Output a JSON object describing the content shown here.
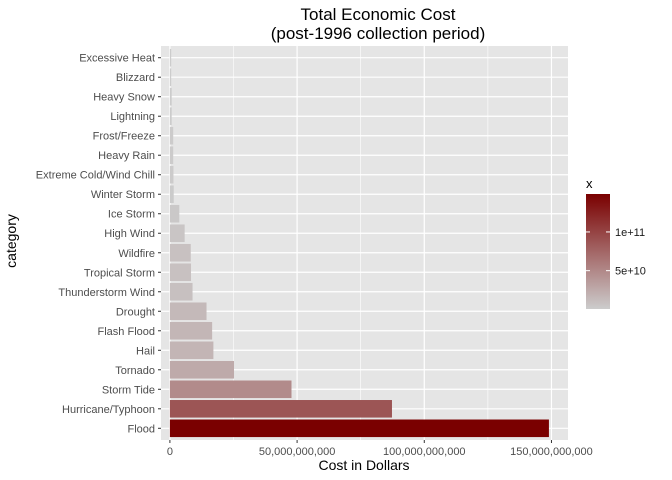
{
  "chart_data": {
    "type": "bar",
    "orientation": "horizontal",
    "title": [
      "Total Economic Cost",
      "(post-1996 collection period)"
    ],
    "xlabel": "Cost in Dollars",
    "ylabel": "category",
    "xlim": [
      -3500000000,
      156500000000
    ],
    "xticks": [
      0,
      50000000000,
      100000000000,
      150000000000
    ],
    "xtick_labels": [
      "0",
      "50,000,000,000",
      "100,000,000,000",
      "150,000,000,000"
    ],
    "categories": [
      "Flood",
      "Hurricane/Typhoon",
      "Storm Tide",
      "Tornado",
      "Hail",
      "Flash Flood",
      "Drought",
      "Thunderstorm Wind",
      "Tropical Storm",
      "Wildfire",
      "High Wind",
      "Ice Storm",
      "Winter Storm",
      "Extreme Cold/Wind Chill",
      "Heavy Rain",
      "Frost/Freeze",
      "Lightning",
      "Heavy Snow",
      "Blizzard",
      "Excessive Heat"
    ],
    "values": [
      149000000000,
      87300000000,
      47800000000,
      25200000000,
      17100000000,
      16600000000,
      14400000000,
      8900000000,
      8300000000,
      8200000000,
      5800000000,
      3700000000,
      1500000000,
      1400000000,
      1300000000,
      1300000000,
      700000000,
      700000000,
      500000000,
      500000000
    ],
    "grid": true,
    "background": "#E5E5E5",
    "gridline_color": "#FFFFFF",
    "legend": {
      "title": "x",
      "position": "right",
      "ticks": [
        50000000000,
        100000000000
      ],
      "tick_labels": [
        "5e+10",
        "1e+11"
      ],
      "range": [
        500000000,
        149000000000
      ],
      "color_low": "#CCCCCC",
      "color_high": "#7A0000"
    }
  }
}
